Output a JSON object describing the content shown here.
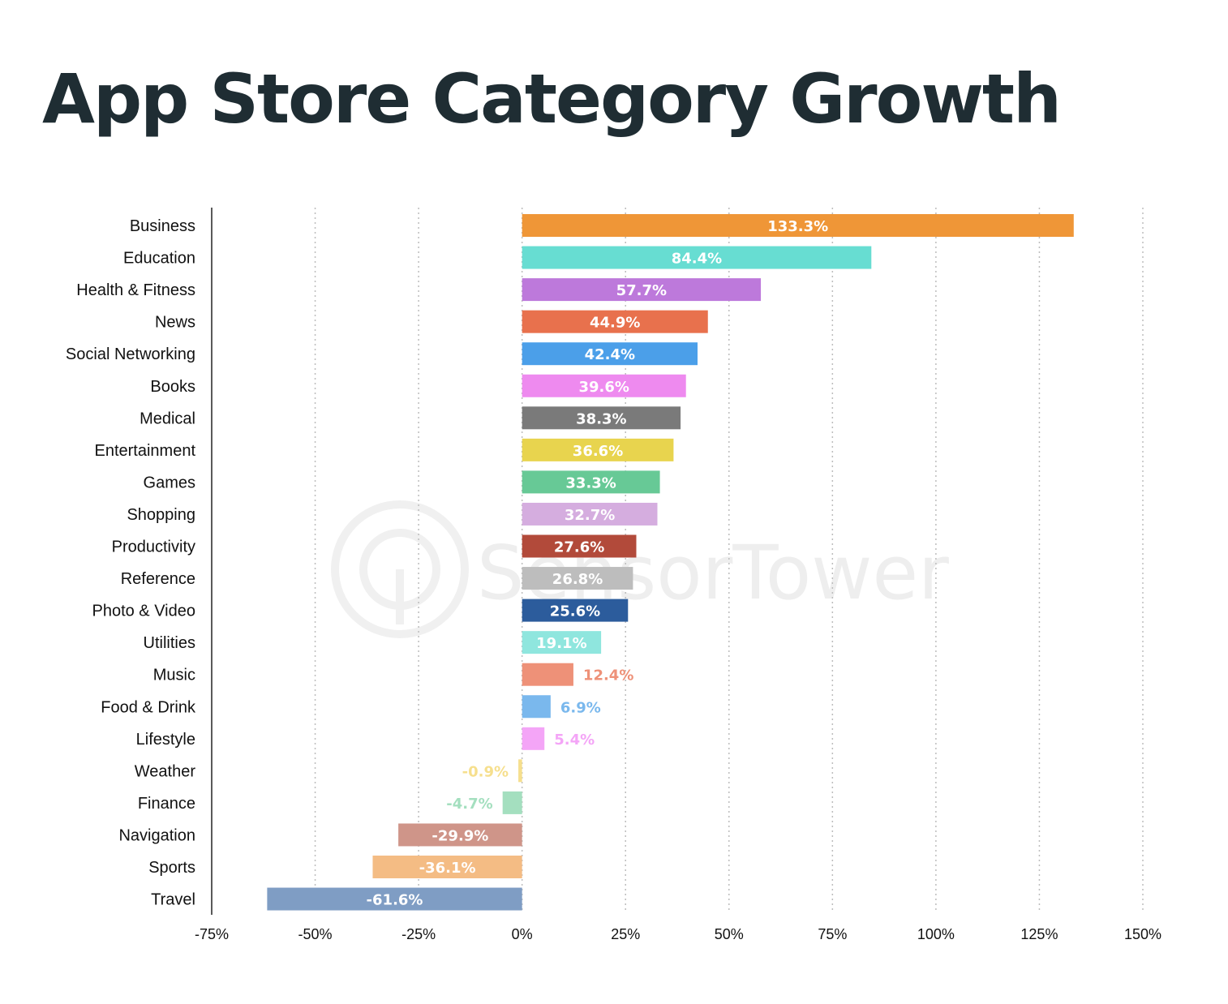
{
  "title": "App Store Category Growth",
  "watermark_text": "SensorTower",
  "chart_data": {
    "type": "bar",
    "orientation": "horizontal",
    "title": "App Store Category Growth",
    "xlabel": "",
    "ylabel": "",
    "xlim": [
      -75,
      150
    ],
    "x_ticks": [
      "-75%",
      "-50%",
      "-25%",
      "0%",
      "25%",
      "50%",
      "75%",
      "100%",
      "125%",
      "150%"
    ],
    "x_tick_values": [
      -75,
      -50,
      -25,
      0,
      25,
      50,
      75,
      100,
      125,
      150
    ],
    "grid": "vertical dotted",
    "categories": [
      "Business",
      "Education",
      "Health & Fitness",
      "News",
      "Social Networking",
      "Books",
      "Medical",
      "Entertainment",
      "Games",
      "Shopping",
      "Productivity",
      "Reference",
      "Photo & Video",
      "Utilities",
      "Music",
      "Food & Drink",
      "Lifestyle",
      "Weather",
      "Finance",
      "Navigation",
      "Sports",
      "Travel"
    ],
    "values": [
      133.3,
      84.4,
      57.7,
      44.9,
      42.4,
      39.6,
      38.3,
      36.6,
      33.3,
      32.7,
      27.6,
      26.8,
      25.6,
      19.1,
      12.4,
      6.9,
      5.4,
      -0.9,
      -4.7,
      -29.9,
      -36.1,
      -61.6
    ],
    "value_labels": [
      "133.3%",
      "84.4%",
      "57.7%",
      "44.9%",
      "42.4%",
      "39.6%",
      "38.3%",
      "36.6%",
      "33.3%",
      "32.7%",
      "27.6%",
      "26.8%",
      "25.6%",
      "19.1%",
      "12.4%",
      "6.9%",
      "5.4%",
      "-0.9%",
      "-4.7%",
      "-29.9%",
      "-36.1%",
      "-61.6%"
    ],
    "colors": [
      "#ef9637",
      "#67ddd2",
      "#bd79db",
      "#e8714d",
      "#4b9fe9",
      "#ee8aef",
      "#7a7a7a",
      "#e8d44e",
      "#67c996",
      "#d5addf",
      "#b24a3a",
      "#bdbdbd",
      "#2c5c9c",
      "#8fe6de",
      "#ee9178",
      "#7ab8ed",
      "#f4a5f7",
      "#f6df8d",
      "#a4dfbf",
      "#cf9589",
      "#f4bc84",
      "#7f9dc4"
    ],
    "label_colors": [
      "#ffffff",
      "#ffffff",
      "#ffffff",
      "#ffffff",
      "#ffffff",
      "#ffffff",
      "#ffffff",
      "#ffffff",
      "#ffffff",
      "#ffffff",
      "#ffffff",
      "#ffffff",
      "#ffffff",
      "#ffffff",
      "#ee9178",
      "#7ab8ed",
      "#f4a5f7",
      "#f6df8d",
      "#a4dfbf",
      "#ffffff",
      "#ffffff",
      "#ffffff"
    ]
  }
}
